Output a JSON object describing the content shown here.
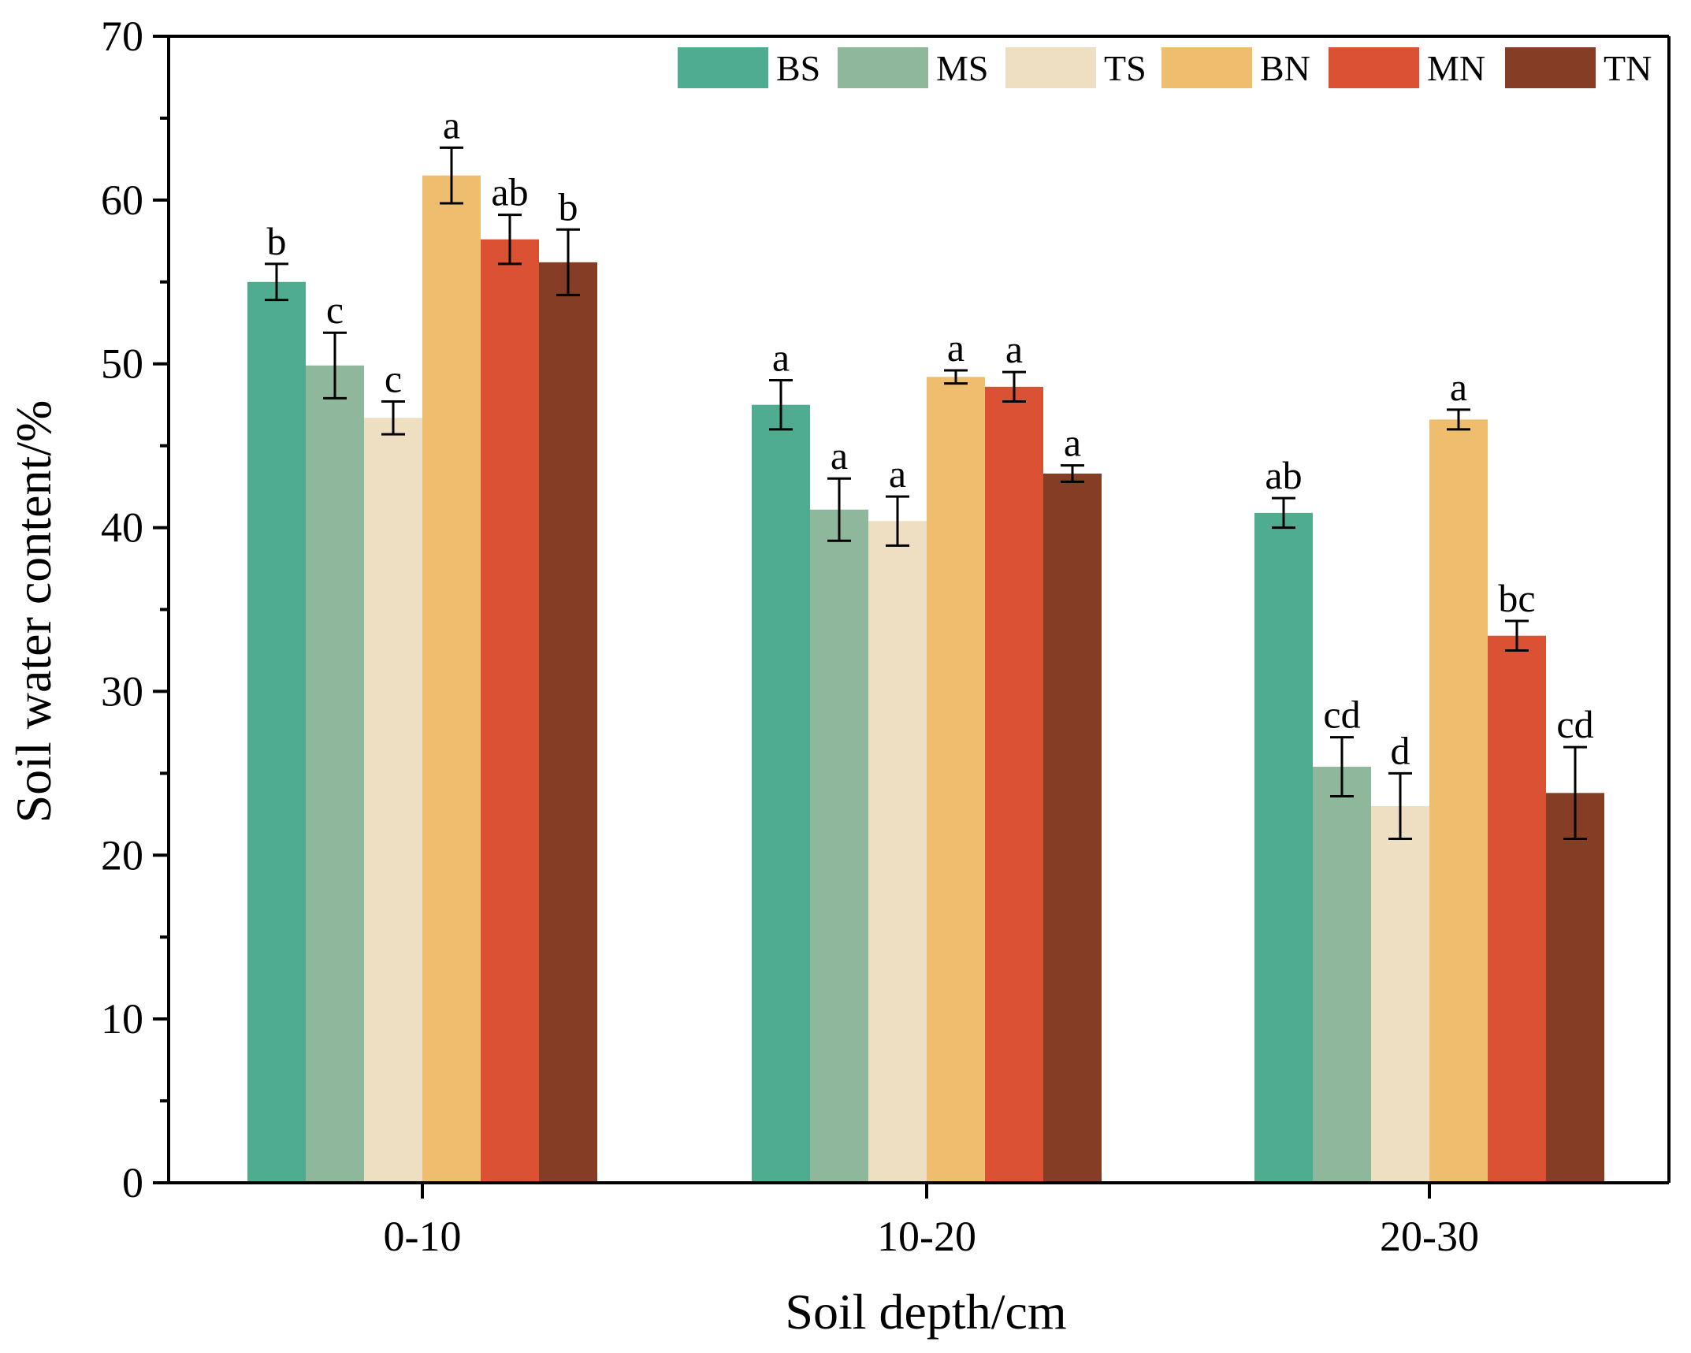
{
  "chart_data": {
    "type": "bar",
    "title": "",
    "xlabel": "Soil depth/cm",
    "ylabel": "Soil water content/%",
    "ylim": [
      0,
      70
    ],
    "yticks": [
      "0",
      "10",
      "20",
      "30",
      "40",
      "50",
      "60",
      "70"
    ],
    "categories": [
      "0-10",
      "10-20",
      "20-30"
    ],
    "legend_position": "top-right",
    "error_bars": true,
    "series": [
      {
        "name": "BS",
        "color": "#4FAC90",
        "values": [
          55.0,
          47.5,
          40.9
        ],
        "errors": [
          1.1,
          1.5,
          0.9
        ],
        "labels": [
          "b",
          "a",
          "ab"
        ]
      },
      {
        "name": "MS",
        "color": "#8FB79C",
        "values": [
          49.9,
          41.1,
          25.4
        ],
        "errors": [
          2.0,
          1.9,
          1.8
        ],
        "labels": [
          "c",
          "a",
          "cd"
        ]
      },
      {
        "name": "TS",
        "color": "#EEDEC2",
        "values": [
          46.7,
          40.4,
          23.0
        ],
        "errors": [
          1.0,
          1.5,
          2.0
        ],
        "labels": [
          "c",
          "a",
          "d"
        ]
      },
      {
        "name": "BN",
        "color": "#EEBE6E",
        "values": [
          61.5,
          49.2,
          46.6
        ],
        "errors": [
          1.7,
          0.4,
          0.6
        ],
        "labels": [
          "a",
          "a",
          "a"
        ]
      },
      {
        "name": "MN",
        "color": "#DB5133",
        "values": [
          57.6,
          48.6,
          33.4
        ],
        "errors": [
          1.5,
          0.9,
          0.9
        ],
        "labels": [
          "ab",
          "a",
          "bc"
        ]
      },
      {
        "name": "TN",
        "color": "#853D25",
        "values": [
          56.2,
          43.3,
          23.8
        ],
        "errors": [
          2.0,
          0.5,
          2.8
        ],
        "labels": [
          "b",
          "a",
          "cd"
        ]
      }
    ]
  }
}
